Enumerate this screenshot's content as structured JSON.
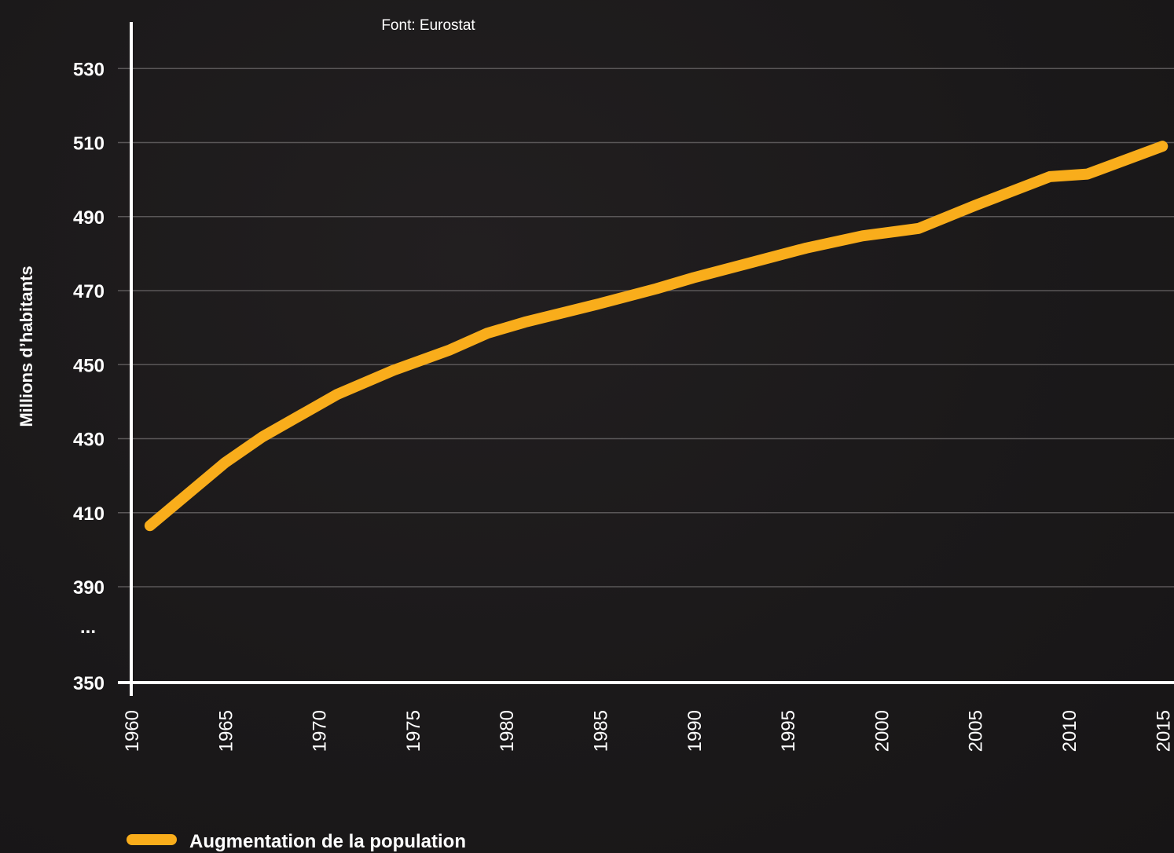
{
  "chart_data": {
    "type": "line",
    "source_note": "Font: Eurostat",
    "ylabel": "Millions d’habitants",
    "xlabel": "",
    "y_ticks": [
      "530",
      "510",
      "490",
      "470",
      "450",
      "430",
      "410",
      "390",
      "350"
    ],
    "y_break_marker": "...",
    "x_ticks": [
      "1960",
      "1965",
      "1970",
      "1975",
      "1980",
      "1985",
      "1990",
      "1995",
      "2000",
      "2005",
      "2010",
      "2015"
    ],
    "ylim": [
      350,
      540
    ],
    "xlim": [
      1960,
      2015
    ],
    "axis_break": {
      "from": 350,
      "to": 380
    },
    "grid": true,
    "legend_position": "bottom-left",
    "series": [
      {
        "name": "Augmentation de la population",
        "color": "#f9ad1b",
        "points": [
          {
            "x": 1961,
            "y": 406.5
          },
          {
            "x": 1965,
            "y": 423.5
          },
          {
            "x": 1967,
            "y": 430.5
          },
          {
            "x": 1971,
            "y": 442
          },
          {
            "x": 1974,
            "y": 448.5
          },
          {
            "x": 1977,
            "y": 454
          },
          {
            "x": 1979,
            "y": 458.5
          },
          {
            "x": 1981,
            "y": 461.5
          },
          {
            "x": 1983,
            "y": 464
          },
          {
            "x": 1985,
            "y": 466.5
          },
          {
            "x": 1988,
            "y": 470.5
          },
          {
            "x": 1990,
            "y": 473.5
          },
          {
            "x": 1993,
            "y": 477.5
          },
          {
            "x": 1996,
            "y": 481.5
          },
          {
            "x": 1999,
            "y": 484.8
          },
          {
            "x": 2002,
            "y": 486.8
          },
          {
            "x": 2005,
            "y": 493
          },
          {
            "x": 2009,
            "y": 500.8
          },
          {
            "x": 2011,
            "y": 501.5
          },
          {
            "x": 2015,
            "y": 509
          }
        ]
      }
    ]
  }
}
